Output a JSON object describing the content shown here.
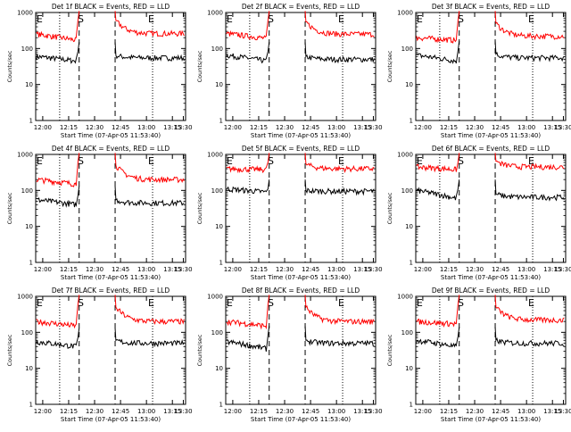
{
  "chart_data": [
    {
      "type": "line",
      "title": "Det 1f BLACK = Events, RED = LLD",
      "xlabel": "Start Time (07-Apr-05 11:53:40)",
      "ylabel": "Counts/sec",
      "y_scale": "log",
      "ylim": [
        1,
        1000
      ],
      "y_tick_labels": [
        "1",
        "10",
        "100",
        "1000"
      ],
      "x_tick_labels": [
        "12:00",
        "12:15",
        "12:30",
        "12:45",
        "13:00",
        "13:15",
        "13:30"
      ],
      "markers": [
        {
          "label": "E"
        },
        {
          "label": "S"
        },
        {
          "label": "E"
        }
      ],
      "series": [
        {
          "color": "#000000",
          "levels": {
            "pre_start": 60,
            "pre_end": 45,
            "spike": 150,
            "post_start": 65,
            "post_end": 55
          }
        },
        {
          "color": "#ff0000",
          "levels": {
            "pre_start": 250,
            "pre_end": 170,
            "spike": 1100,
            "post_start": 600,
            "post_end": 260
          }
        }
      ]
    },
    {
      "type": "line",
      "title": "Det 2f BLACK = Events, RED = LLD",
      "xlabel": "Start Time (07-Apr-05 11:53:40)",
      "ylabel": "Counts/sec",
      "y_scale": "log",
      "ylim": [
        1,
        1000
      ],
      "y_tick_labels": [
        "1",
        "10",
        "100",
        "1000"
      ],
      "x_tick_labels": [
        "12:00",
        "12:15",
        "12:30",
        "12:45",
        "13:00",
        "13:15",
        "13:30"
      ],
      "markers": [
        {
          "label": "E"
        },
        {
          "label": "S"
        },
        {
          "label": "E"
        }
      ],
      "series": [
        {
          "color": "#000000",
          "levels": {
            "pre_start": 65,
            "pre_end": 45,
            "spike": 150,
            "post_start": 60,
            "post_end": 50
          }
        },
        {
          "color": "#ff0000",
          "levels": {
            "pre_start": 260,
            "pre_end": 190,
            "spike": 1100,
            "post_start": 550,
            "post_end": 250
          }
        }
      ]
    },
    {
      "type": "line",
      "title": "Det 3f BLACK = Events, RED = LLD",
      "xlabel": "Start Time (07-Apr-05 11:53:40)",
      "ylabel": "Counts/sec",
      "y_scale": "log",
      "ylim": [
        1,
        1000
      ],
      "y_tick_labels": [
        "1",
        "10",
        "100",
        "1000"
      ],
      "x_tick_labels": [
        "12:00",
        "12:15",
        "12:30",
        "12:45",
        "13:00",
        "13:15",
        "13:30"
      ],
      "markers": [
        {
          "label": "E"
        },
        {
          "label": "S"
        },
        {
          "label": "E"
        }
      ],
      "series": [
        {
          "color": "#000000",
          "levels": {
            "pre_start": 65,
            "pre_end": 45,
            "spike": 160,
            "post_start": 70,
            "post_end": 55
          }
        },
        {
          "color": "#ff0000",
          "levels": {
            "pre_start": 200,
            "pre_end": 170,
            "spike": 1100,
            "post_start": 500,
            "post_end": 220
          }
        }
      ]
    },
    {
      "type": "line",
      "title": "Det 4f BLACK = Events, RED = LLD",
      "xlabel": "Start Time (07-Apr-05 11:53:40)",
      "ylabel": "Counts/sec",
      "y_scale": "log",
      "ylim": [
        1,
        1000
      ],
      "y_tick_labels": [
        "1",
        "10",
        "100",
        "1000"
      ],
      "x_tick_labels": [
        "12:00",
        "12:15",
        "12:30",
        "12:45",
        "13:00",
        "13:15",
        "13:30"
      ],
      "markers": [
        {
          "label": "E"
        },
        {
          "label": "S"
        },
        {
          "label": "E"
        }
      ],
      "series": [
        {
          "color": "#000000",
          "levels": {
            "pre_start": 55,
            "pre_end": 40,
            "spike": 130,
            "post_start": 55,
            "post_end": 45
          }
        },
        {
          "color": "#ff0000",
          "levels": {
            "pre_start": 200,
            "pre_end": 150,
            "spike": 1100,
            "post_start": 500,
            "post_end": 200
          }
        }
      ]
    },
    {
      "type": "line",
      "title": "Det 5f BLACK = Events, RED = LLD",
      "xlabel": "Start Time (07-Apr-05 11:53:40)",
      "ylabel": "Counts/sec",
      "y_scale": "log",
      "ylim": [
        1,
        1000
      ],
      "y_tick_labels": [
        "1",
        "10",
        "100",
        "1000"
      ],
      "x_tick_labels": [
        "12:00",
        "12:15",
        "12:30",
        "12:45",
        "13:00",
        "13:15",
        "13:30"
      ],
      "markers": [
        {
          "label": "E"
        },
        {
          "label": "S"
        },
        {
          "label": "E"
        }
      ],
      "series": [
        {
          "color": "#000000",
          "levels": {
            "pre_start": 110,
            "pre_end": 90,
            "spike": 200,
            "post_start": 100,
            "post_end": 95
          }
        },
        {
          "color": "#ff0000",
          "levels": {
            "pre_start": 400,
            "pre_end": 380,
            "spike": 1100,
            "post_start": 550,
            "post_end": 400
          }
        }
      ]
    },
    {
      "type": "line",
      "title": "Det 6f BLACK = Events, RED = LLD",
      "xlabel": "Start Time (07-Apr-05 11:53:40)",
      "ylabel": "Counts/sec",
      "y_scale": "log",
      "ylim": [
        1,
        1000
      ],
      "y_tick_labels": [
        "1",
        "10",
        "100",
        "1000"
      ],
      "x_tick_labels": [
        "12:00",
        "12:15",
        "12:30",
        "12:45",
        "13:00",
        "13:15",
        "13:30"
      ],
      "markers": [
        {
          "label": "E"
        },
        {
          "label": "S"
        },
        {
          "label": "E"
        }
      ],
      "series": [
        {
          "color": "#000000",
          "levels": {
            "pre_start": 100,
            "pre_end": 60,
            "spike": 200,
            "post_start": 80,
            "post_end": 65
          }
        },
        {
          "color": "#ff0000",
          "levels": {
            "pre_start": 450,
            "pre_end": 380,
            "spike": 1100,
            "post_start": 650,
            "post_end": 450
          }
        }
      ]
    },
    {
      "type": "line",
      "title": "Det 7f BLACK = Events, RED = LLD",
      "xlabel": "Start Time (07-Apr-05 11:53:40)",
      "ylabel": "Counts/sec",
      "y_scale": "log",
      "ylim": [
        1,
        1000
      ],
      "y_tick_labels": [
        "1",
        "10",
        "100",
        "1000"
      ],
      "x_tick_labels": [
        "12:00",
        "12:15",
        "12:30",
        "12:45",
        "13:00",
        "13:15",
        "13:30"
      ],
      "markers": [
        {
          "label": "E"
        },
        {
          "label": "S"
        },
        {
          "label": "E"
        }
      ],
      "series": [
        {
          "color": "#000000",
          "levels": {
            "pre_start": 55,
            "pre_end": 40,
            "spike": 130,
            "post_start": 60,
            "post_end": 50
          }
        },
        {
          "color": "#ff0000",
          "levels": {
            "pre_start": 200,
            "pre_end": 150,
            "spike": 1100,
            "post_start": 500,
            "post_end": 200
          }
        }
      ]
    },
    {
      "type": "line",
      "title": "Det 8f BLACK = Events, RED = LLD",
      "xlabel": "Start Time (07-Apr-05 11:53:40)",
      "ylabel": "Counts/sec",
      "y_scale": "log",
      "ylim": [
        1,
        1000
      ],
      "y_tick_labels": [
        "1",
        "10",
        "100",
        "1000"
      ],
      "x_tick_labels": [
        "12:00",
        "12:15",
        "12:30",
        "12:45",
        "13:00",
        "13:15",
        "13:30"
      ],
      "markers": [
        {
          "label": "E"
        },
        {
          "label": "S"
        },
        {
          "label": "E"
        }
      ],
      "series": [
        {
          "color": "#000000",
          "levels": {
            "pre_start": 55,
            "pre_end": 35,
            "spike": 150,
            "post_start": 60,
            "post_end": 50
          }
        },
        {
          "color": "#ff0000",
          "levels": {
            "pre_start": 200,
            "pre_end": 150,
            "spike": 1100,
            "post_start": 500,
            "post_end": 200
          }
        }
      ]
    },
    {
      "type": "line",
      "title": "Det 9f BLACK = Events, RED = LLD",
      "xlabel": "Start Time (07-Apr-05 11:53:40)",
      "ylabel": "Counts/sec",
      "y_scale": "log",
      "ylim": [
        1,
        1000
      ],
      "y_tick_labels": [
        "1",
        "10",
        "100",
        "1000"
      ],
      "x_tick_labels": [
        "12:00",
        "12:15",
        "12:30",
        "12:45",
        "13:00",
        "13:15",
        "13:30"
      ],
      "markers": [
        {
          "label": "E"
        },
        {
          "label": "S"
        },
        {
          "label": "E"
        }
      ],
      "series": [
        {
          "color": "#000000",
          "levels": {
            "pre_start": 60,
            "pre_end": 40,
            "spike": 140,
            "post_start": 60,
            "post_end": 50
          }
        },
        {
          "color": "#ff0000",
          "levels": {
            "pre_start": 200,
            "pre_end": 170,
            "spike": 1100,
            "post_start": 500,
            "post_end": 220
          }
        }
      ]
    }
  ]
}
